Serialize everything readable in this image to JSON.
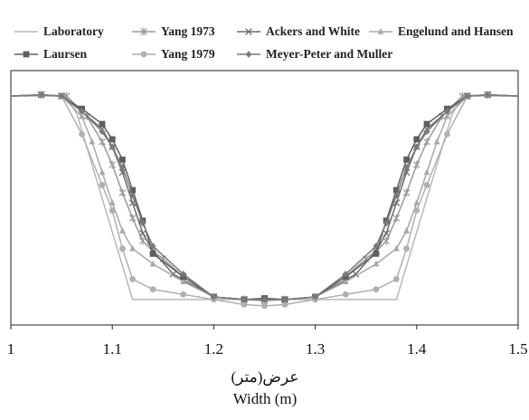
{
  "chart_data": {
    "type": "line",
    "xlabel_ar": "عرض(متر)",
    "xlabel": "Width (m)",
    "xlim": [
      1,
      1.5
    ],
    "ylim": [
      0,
      1
    ],
    "y_ticks_shown": false,
    "x_ticks": [
      "1",
      "1.1",
      "1.2",
      "1.3",
      "1.4",
      "1.5"
    ],
    "legend_position": "top",
    "series": [
      {
        "name": "Laboratory",
        "color": "#b8b8b8",
        "marker": "none",
        "x": [
          1.0,
          1.05,
          1.055,
          1.065,
          1.12,
          1.38,
          1.435,
          1.445,
          1.455,
          1.5
        ],
        "y": [
          0.9,
          0.9,
          0.895,
          0.83,
          0.1,
          0.1,
          0.83,
          0.895,
          0.9,
          0.9
        ]
      },
      {
        "name": "Yang 1973",
        "color": "#999999",
        "marker": "star",
        "x": [
          1.0,
          1.03,
          1.055,
          1.075,
          1.09,
          1.1,
          1.11,
          1.12,
          1.13,
          1.14,
          1.15,
          1.17,
          1.2,
          1.23,
          1.25,
          1.27,
          1.3,
          1.33,
          1.35,
          1.36,
          1.37,
          1.38,
          1.39,
          1.4,
          1.41,
          1.425,
          1.445,
          1.47,
          1.5
        ],
        "y": [
          0.9,
          0.905,
          0.9,
          0.82,
          0.72,
          0.63,
          0.52,
          0.42,
          0.33,
          0.29,
          0.26,
          0.19,
          0.11,
          0.1,
          0.095,
          0.1,
          0.11,
          0.19,
          0.26,
          0.29,
          0.33,
          0.42,
          0.52,
          0.63,
          0.72,
          0.82,
          0.9,
          0.905,
          0.9
        ]
      },
      {
        "name": "Ackers and White",
        "color": "#6d6d6d",
        "marker": "x",
        "x": [
          1.0,
          1.03,
          1.05,
          1.07,
          1.09,
          1.1,
          1.11,
          1.12,
          1.13,
          1.14,
          1.16,
          1.2,
          1.23,
          1.25,
          1.27,
          1.3,
          1.34,
          1.36,
          1.37,
          1.38,
          1.39,
          1.4,
          1.41,
          1.43,
          1.45,
          1.47,
          1.5
        ],
        "y": [
          0.9,
          0.905,
          0.9,
          0.84,
          0.77,
          0.7,
          0.6,
          0.48,
          0.36,
          0.29,
          0.2,
          0.11,
          0.1,
          0.1,
          0.1,
          0.11,
          0.2,
          0.29,
          0.36,
          0.48,
          0.6,
          0.7,
          0.77,
          0.84,
          0.9,
          0.905,
          0.9
        ]
      },
      {
        "name": "Engelund and Hansen",
        "color": "#a8a8a8",
        "marker": "triangle",
        "x": [
          1.0,
          1.03,
          1.05,
          1.07,
          1.08,
          1.09,
          1.1,
          1.11,
          1.12,
          1.14,
          1.17,
          1.2,
          1.23,
          1.25,
          1.27,
          1.3,
          1.33,
          1.36,
          1.38,
          1.39,
          1.4,
          1.41,
          1.42,
          1.43,
          1.45,
          1.47,
          1.5
        ],
        "y": [
          0.9,
          0.905,
          0.9,
          0.82,
          0.72,
          0.6,
          0.48,
          0.37,
          0.3,
          0.24,
          0.17,
          0.11,
          0.1,
          0.1,
          0.1,
          0.11,
          0.17,
          0.24,
          0.3,
          0.37,
          0.48,
          0.6,
          0.72,
          0.82,
          0.9,
          0.905,
          0.9
        ]
      },
      {
        "name": "Laursen",
        "color": "#5e5e5e",
        "marker": "square",
        "x": [
          1.0,
          1.03,
          1.05,
          1.07,
          1.09,
          1.1,
          1.11,
          1.12,
          1.13,
          1.14,
          1.17,
          1.2,
          1.23,
          1.25,
          1.27,
          1.3,
          1.33,
          1.36,
          1.37,
          1.38,
          1.39,
          1.4,
          1.41,
          1.43,
          1.45,
          1.47,
          1.5
        ],
        "y": [
          0.9,
          0.905,
          0.9,
          0.85,
          0.79,
          0.73,
          0.65,
          0.53,
          0.41,
          0.28,
          0.19,
          0.11,
          0.1,
          0.105,
          0.1,
          0.11,
          0.19,
          0.28,
          0.41,
          0.53,
          0.65,
          0.73,
          0.79,
          0.85,
          0.9,
          0.905,
          0.9
        ]
      },
      {
        "name": "Yang 1979",
        "color": "#b0b0b0",
        "marker": "circle",
        "x": [
          1.0,
          1.03,
          1.05,
          1.07,
          1.09,
          1.1,
          1.11,
          1.12,
          1.14,
          1.17,
          1.2,
          1.23,
          1.25,
          1.27,
          1.3,
          1.33,
          1.36,
          1.38,
          1.39,
          1.4,
          1.41,
          1.43,
          1.45,
          1.47,
          1.5
        ],
        "y": [
          0.9,
          0.905,
          0.9,
          0.75,
          0.55,
          0.45,
          0.3,
          0.18,
          0.14,
          0.12,
          0.1,
          0.08,
          0.075,
          0.08,
          0.1,
          0.12,
          0.14,
          0.18,
          0.3,
          0.45,
          0.55,
          0.75,
          0.9,
          0.905,
          0.9
        ]
      },
      {
        "name": "Meyer-Peter and Muller",
        "color": "#7a7a7a",
        "marker": "diamond",
        "x": [
          1.0,
          1.03,
          1.05,
          1.07,
          1.09,
          1.1,
          1.11,
          1.12,
          1.13,
          1.14,
          1.17,
          1.2,
          1.23,
          1.25,
          1.27,
          1.3,
          1.33,
          1.36,
          1.37,
          1.38,
          1.39,
          1.4,
          1.41,
          1.43,
          1.45,
          1.47,
          1.5
        ],
        "y": [
          0.9,
          0.905,
          0.9,
          0.84,
          0.76,
          0.7,
          0.62,
          0.51,
          0.4,
          0.31,
          0.2,
          0.11,
          0.1,
          0.1,
          0.1,
          0.11,
          0.2,
          0.31,
          0.4,
          0.51,
          0.62,
          0.7,
          0.76,
          0.84,
          0.9,
          0.905,
          0.9
        ]
      }
    ]
  }
}
